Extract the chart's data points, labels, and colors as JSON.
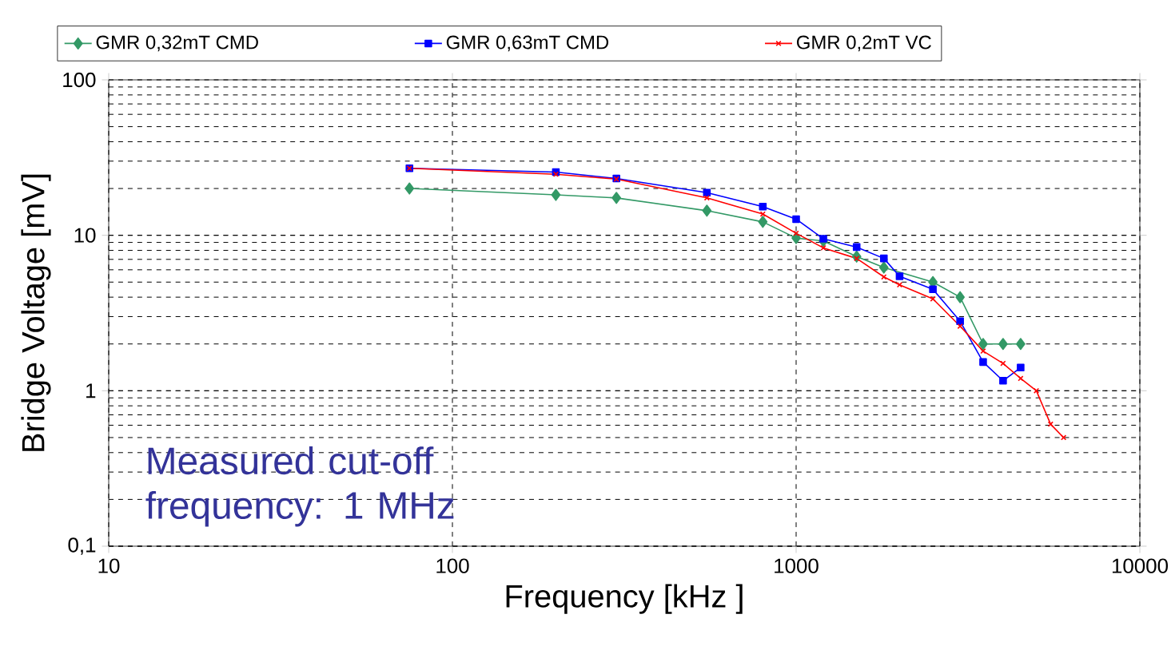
{
  "chart_data": {
    "type": "line",
    "xlabel": "Frequency [kHz ]",
    "ylabel": "Bridge Voltage [mV]",
    "log": "xy",
    "grid": true,
    "legend": "top",
    "xlim": [
      10,
      10000
    ],
    "ylim": [
      0.1,
      100
    ],
    "xticks": [
      10,
      100,
      1000,
      10000
    ],
    "yticks": [
      {
        "value": 0.1,
        "label": "0,1"
      },
      1,
      10,
      100
    ],
    "annotations": [
      "Measured cut-off frequency: 1 MHz"
    ],
    "series": [
      {
        "name": "GMR 0,32mT CMD",
        "color": "#339966",
        "marker": "diamond",
        "x": [
          75,
          200,
          300,
          550,
          800,
          1000,
          1200,
          1500,
          1800,
          2500,
          3000,
          3500,
          4000,
          4500
        ],
        "values": [
          20,
          18.2,
          17.4,
          14.4,
          12.2,
          9.6,
          9.2,
          7.3,
          6.2,
          5.0,
          4.0,
          2.0,
          2.0,
          2.0
        ]
      },
      {
        "name": "GMR 0,63mT CMD",
        "color": "#0000ff",
        "marker": "square",
        "x": [
          75,
          200,
          300,
          550,
          800,
          1000,
          1200,
          1500,
          1800,
          2000,
          2500,
          3000,
          3500,
          4000,
          4500
        ],
        "values": [
          27,
          25.5,
          23.2,
          18.8,
          15.3,
          12.7,
          9.5,
          8.4,
          7.1,
          5.45,
          4.5,
          2.8,
          1.53,
          1.16,
          1.41
        ]
      },
      {
        "name": "GMR 0,2mT VC",
        "color": "#ff0000",
        "marker": "cross",
        "x": [
          75,
          200,
          300,
          550,
          800,
          1000,
          1200,
          1500,
          1800,
          2000,
          2500,
          3000,
          3500,
          4000,
          4500,
          5000,
          5500,
          6000
        ],
        "values": [
          27,
          24.7,
          23,
          17.4,
          13.7,
          10.3,
          8.3,
          7.1,
          5.4,
          4.8,
          3.9,
          2.6,
          1.8,
          1.5,
          1.2,
          1.0,
          0.61,
          0.5
        ]
      }
    ]
  }
}
